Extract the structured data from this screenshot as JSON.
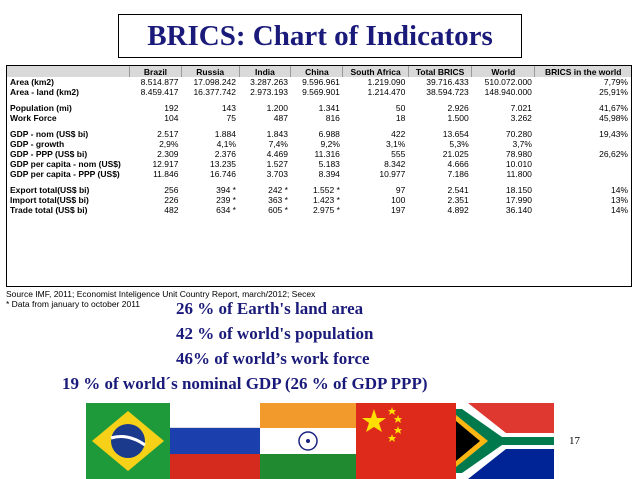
{
  "title": "BRICS: Chart of Indicators",
  "table": {
    "headers": [
      "",
      "Brazil",
      "Russia",
      "India",
      "China",
      "South Africa",
      "Total BRICS",
      "World",
      "BRICS in the world"
    ],
    "rows": [
      [
        "Area (km2)",
        "8.514.877",
        "17.098.242",
        "3.287.263",
        "9.596.961",
        "1.219.090",
        "39.716.433",
        "510.072.000",
        "7,79%"
      ],
      [
        "Area - land (km2)",
        "8.459.417",
        "16.377.742",
        "2.973.193",
        "9.569.901",
        "1.214.470",
        "38.594.723",
        "148.940.000",
        "25,91%"
      ],
      [
        "",
        "",
        "",
        "",
        "",
        "",
        "",
        "",
        ""
      ],
      [
        "Population (mi)",
        "192",
        "143",
        "1.200",
        "1.341",
        "50",
        "2.926",
        "7.021",
        "41,67%"
      ],
      [
        "Work Force",
        "104",
        "75",
        "487",
        "816",
        "18",
        "1.500",
        "3.262",
        "45,98%"
      ],
      [
        "",
        "",
        "",
        "",
        "",
        "",
        "",
        "",
        ""
      ],
      [
        "GDP - nom (US$ bi)",
        "2.517",
        "1.884",
        "1.843",
        "6.988",
        "422",
        "13.654",
        "70.280",
        "19,43%"
      ],
      [
        "GDP - growth",
        "2,9%",
        "4,1%",
        "7,4%",
        "9,2%",
        "3,1%",
        "5,3%",
        "3,7%",
        ""
      ],
      [
        "GDP - PPP (US$ bi)",
        "2.309",
        "2.376",
        "4.469",
        "11.316",
        "555",
        "21.025",
        "78.980",
        "26,62%"
      ],
      [
        "GDP per capita - nom (US$)",
        "12.917",
        "13.235",
        "1.527",
        "5.183",
        "8.342",
        "4.666",
        "10.010",
        ""
      ],
      [
        "GDP per capita - PPP (US$)",
        "11.846",
        "16.746",
        "3.703",
        "8.394",
        "10.977",
        "7.186",
        "11.800",
        ""
      ],
      [
        "",
        "",
        "",
        "",
        "",
        "",
        "",
        "",
        ""
      ],
      [
        "Export total(US$ bi)",
        "256",
        "394 *",
        "242 *",
        "1.552 *",
        "97",
        "2.541",
        "18.150",
        "14%"
      ],
      [
        "Import total(US$ bi)",
        "226",
        "239 *",
        "363 *",
        "1.423 *",
        "100",
        "2.351",
        "17.990",
        "13%"
      ],
      [
        "Trade total (US$ bi)",
        "482",
        "634 *",
        "605 *",
        "2.975 *",
        "197",
        "4.892",
        "36.140",
        "14%"
      ]
    ]
  },
  "source_line1": "Source IMF, 2011; Economist Inteligence Unit Country Report, march/2012; Secex",
  "source_line2": "* Data from january to october 2011",
  "facts": [
    "26 % of Earth's land area",
    "42 % of world's population",
    "46% of world’s work force",
    "19 % of world´s nominal GDP (26 % of GDP PPP)"
  ],
  "flags": [
    "brazil-flag",
    "russia-flag",
    "india-flag",
    "china-flag",
    "south-africa-flag"
  ],
  "page_number": "17"
}
